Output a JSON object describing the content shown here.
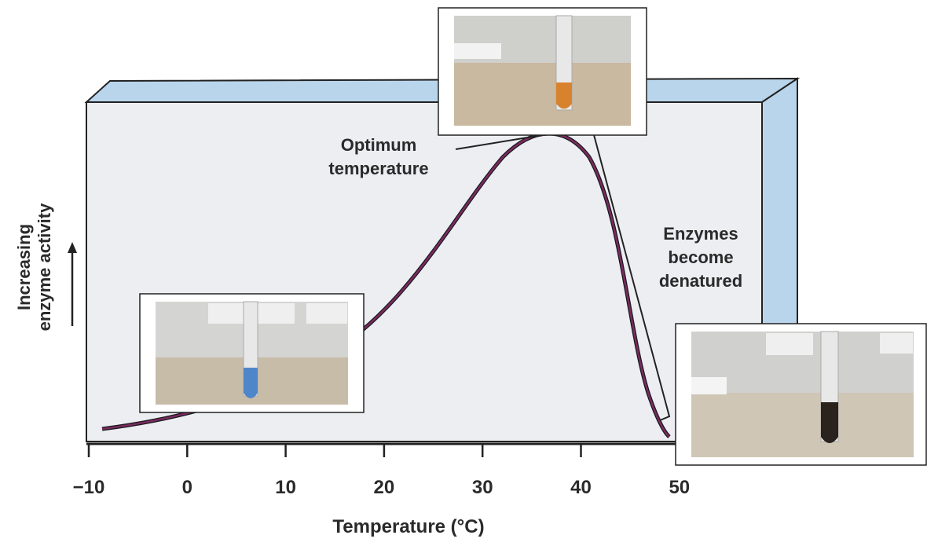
{
  "optimum_label": [
    "Optimum",
    "temperature"
  ],
  "denatured_label": [
    "Enzymes",
    "become",
    "denatured"
  ],
  "y_axis_label": [
    "Increasing",
    "enzyme activity"
  ],
  "x_axis_label": "Temperature (°C)",
  "x_ticks": [
    "−10",
    "0",
    "10",
    "20",
    "30",
    "40",
    "50"
  ]
}
